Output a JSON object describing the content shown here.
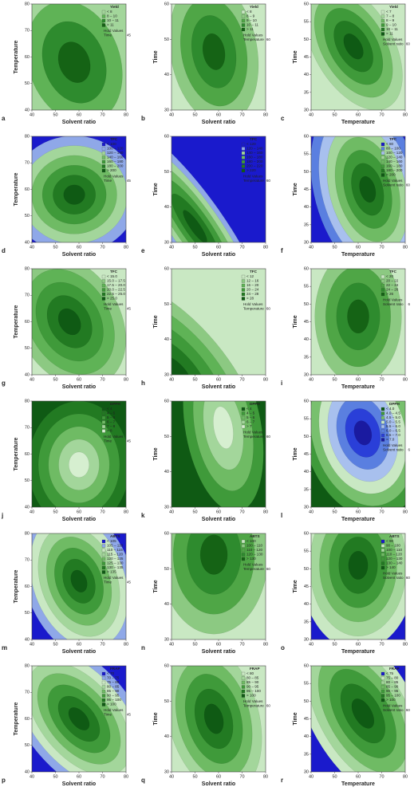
{
  "chart_data": [
    {
      "type": "contour",
      "panel": "a",
      "xlabel": "Solvent ratio",
      "ylabel": "Temperature",
      "xlim": [
        40,
        80
      ],
      "ylim": [
        40,
        80
      ],
      "xticks": [
        40,
        50,
        60,
        70,
        80
      ],
      "yticks": [
        40,
        50,
        60,
        70,
        80
      ],
      "legend_title": "Yield",
      "legend": [
        "< 8",
        "8 – 10",
        "10 – 11",
        "> 11"
      ],
      "levels": [
        8,
        10,
        11
      ],
      "colors": [
        "#a3d69b",
        "#5fb356",
        "#2e8b2e",
        "#156315"
      ],
      "hold_label": "Hold Values",
      "hold_name": "Time",
      "hold_value": 45
    },
    {
      "type": "contour",
      "panel": "b",
      "xlabel": "Solvent ratio",
      "ylabel": "Time",
      "xlim": [
        40,
        80
      ],
      "ylim": [
        30,
        60
      ],
      "xticks": [
        40,
        50,
        60,
        70,
        80
      ],
      "yticks": [
        30,
        40,
        50,
        60
      ],
      "legend_title": "Yield",
      "legend": [
        "< 8",
        "8 – 9",
        "9 – 10",
        "10 – 11",
        "> 11"
      ],
      "levels": [
        8,
        9,
        10,
        11
      ],
      "colors": [
        "#c9e8c3",
        "#8cc982",
        "#4fa646",
        "#2e8b2e",
        "#156315"
      ],
      "hold_label": "Hold Values",
      "hold_name": "Temperature",
      "hold_value": 60
    },
    {
      "type": "contour",
      "panel": "c",
      "xlabel": "Temperature",
      "ylabel": "Time",
      "xlim": [
        40,
        80
      ],
      "ylim": [
        30,
        60
      ],
      "xticks": [
        40,
        50,
        60,
        70,
        80
      ],
      "yticks": [
        30,
        35,
        40,
        45,
        50,
        55,
        60
      ],
      "legend_title": "Yield",
      "legend": [
        "< 7",
        "7 – 8",
        "8 – 9",
        "9 – 10",
        "10 – 11",
        "> 11"
      ],
      "levels": [
        7,
        8,
        9,
        10,
        11
      ],
      "colors": [
        "#c9e8c3",
        "#a3d69b",
        "#6fbb64",
        "#3f9a3a",
        "#227a22",
        "#0f5a14"
      ],
      "hold_label": "Hold Values",
      "hold_name": "Solvent ratio",
      "hold_value": 60
    },
    {
      "type": "contour",
      "panel": "d",
      "xlabel": "Solvent ratio",
      "ylabel": "Temperature",
      "xlim": [
        40,
        80
      ],
      "ylim": [
        40,
        80
      ],
      "xticks": [
        40,
        50,
        60,
        70,
        80
      ],
      "yticks": [
        40,
        50,
        60,
        70,
        80
      ],
      "legend_title": "TPC",
      "legend": [
        "< 100",
        "100 – 120",
        "120 – 140",
        "140 – 160",
        "160 – 180",
        "180 – 200",
        "> 200"
      ],
      "levels": [
        100,
        120,
        140,
        160,
        180,
        200
      ],
      "colors": [
        "#1a1acc",
        "#8fa8e8",
        "#a3d69b",
        "#6fbb64",
        "#3f9a3a",
        "#227a22",
        "#0f5a14"
      ],
      "hold_label": "Hold Values",
      "hold_name": "Time",
      "hold_value": 45
    },
    {
      "type": "contour",
      "panel": "e",
      "xlabel": "Solvent ratio",
      "ylabel": "Time",
      "xlim": [
        40,
        80
      ],
      "ylim": [
        30,
        60
      ],
      "xticks": [
        40,
        50,
        60,
        70,
        80
      ],
      "yticks": [
        30,
        40,
        50,
        60
      ],
      "legend_title": "TPC",
      "legend": [
        "< 120",
        "120 – 140",
        "140 – 160",
        "160 – 180",
        "180 – 200",
        "200 – 220",
        "> 220"
      ],
      "levels": [
        120,
        140,
        160,
        180,
        200,
        220
      ],
      "colors": [
        "#1a1acc",
        "#8fa8e8",
        "#a3d69b",
        "#6fbb64",
        "#3f9a3a",
        "#227a22",
        "#0f5a14"
      ],
      "hold_label": "Hold Values",
      "hold_name": "Temperature",
      "hold_value": 60
    },
    {
      "type": "contour",
      "panel": "f",
      "xlabel": "Temperature",
      "ylabel": "Time",
      "xlim": [
        40,
        80
      ],
      "ylim": [
        30,
        60
      ],
      "xticks": [
        40,
        50,
        60,
        70,
        80
      ],
      "yticks": [
        30,
        35,
        40,
        45,
        50,
        55,
        60
      ],
      "legend_title": "TPC",
      "legend": [
        "< 80",
        "80 – 100",
        "100 – 120",
        "120 – 140",
        "140 – 160",
        "160 – 180",
        "180 – 200",
        "> 200"
      ],
      "levels": [
        80,
        100,
        120,
        140,
        160,
        180,
        200
      ],
      "colors": [
        "#1a1acc",
        "#5a7fe0",
        "#a8c0ee",
        "#a3d69b",
        "#6fbb64",
        "#3f9a3a",
        "#227a22",
        "#0f5a14"
      ],
      "hold_label": "Hold Values",
      "hold_name": "Solvent ratio",
      "hold_value": 60
    },
    {
      "type": "contour",
      "panel": "g",
      "xlabel": "Solvent ratio",
      "ylabel": "Temperature",
      "xlim": [
        40,
        80
      ],
      "ylim": [
        40,
        80
      ],
      "xticks": [
        40,
        50,
        60,
        70,
        80
      ],
      "yticks": [
        40,
        50,
        60,
        70,
        80
      ],
      "legend_title": "TFC",
      "legend": [
        "< 15.0",
        "15.0 – 17.5",
        "17.5 – 20.0",
        "20.0 – 22.5",
        "22.5 – 25.0",
        "> 25.0"
      ],
      "levels": [
        15,
        17.5,
        20,
        22.5,
        25
      ],
      "colors": [
        "#c9e8c3",
        "#8cc982",
        "#5fb356",
        "#3f9a3a",
        "#227a22",
        "#0f5a14"
      ],
      "hold_label": "Hold Values",
      "hold_name": "Time",
      "hold_value": 45
    },
    {
      "type": "contour",
      "panel": "h",
      "xlabel": "Solvent ratio",
      "ylabel": "Time",
      "xlim": [
        40,
        80
      ],
      "ylim": [
        30,
        60
      ],
      "xticks": [
        40,
        50,
        60,
        70,
        80
      ],
      "yticks": [
        30,
        40,
        50,
        60
      ],
      "legend_title": "TFC",
      "legend": [
        "< 12",
        "12 – 16",
        "16 – 20",
        "20 – 24",
        "24 – 28",
        "> 28"
      ],
      "levels": [
        12,
        16,
        20,
        24,
        28
      ],
      "colors": [
        "#c9e8c3",
        "#8cc982",
        "#5fb356",
        "#3f9a3a",
        "#227a22",
        "#0f5a14"
      ],
      "hold_label": "Hold Values",
      "hold_name": "Temperature",
      "hold_value": 60
    },
    {
      "type": "contour",
      "panel": "i",
      "xlabel": "Temperature",
      "ylabel": "Time",
      "xlim": [
        40,
        80
      ],
      "ylim": [
        30,
        60
      ],
      "xticks": [
        40,
        50,
        60,
        70,
        80
      ],
      "yticks": [
        30,
        35,
        40,
        45,
        50,
        55,
        60
      ],
      "legend_title": "TFC",
      "legend": [
        "< 20",
        "20 – 22",
        "22 – 24",
        "24 – 26",
        "> 26"
      ],
      "levels": [
        20,
        22,
        24,
        26
      ],
      "colors": [
        "#c9e8c3",
        "#8cc982",
        "#4fa646",
        "#2e8b2e",
        "#156315"
      ],
      "hold_label": "Hold Values",
      "hold_name": "Solvent ratio",
      "hold_value": 6
    },
    {
      "type": "contour",
      "panel": "j",
      "xlabel": "Solvent ratio",
      "ylabel": "Temperature",
      "xlim": [
        40,
        80
      ],
      "ylim": [
        40,
        80
      ],
      "xticks": [
        40,
        50,
        60,
        70,
        80
      ],
      "yticks": [
        40,
        50,
        60,
        70,
        80
      ],
      "legend_title": "DPPH",
      "legend": [
        "< 4",
        "4 – 5",
        "5 – 6",
        "6 – 7",
        "7 – 8",
        "> 8"
      ],
      "levels": [
        4,
        5,
        6,
        7,
        8
      ],
      "colors": [
        "#0f5a14",
        "#227a22",
        "#3f9a3a",
        "#6fbb64",
        "#a3d69b",
        "#d6efd0"
      ],
      "hold_label": "Hold Values",
      "hold_name": "Time",
      "hold_value": 45
    },
    {
      "type": "contour",
      "panel": "k",
      "xlabel": "Solvent ratio",
      "ylabel": "Time",
      "xlim": [
        40,
        80
      ],
      "ylim": [
        30,
        60
      ],
      "xticks": [
        40,
        50,
        60,
        70,
        80
      ],
      "yticks": [
        30,
        40,
        50,
        60
      ],
      "legend_title": "DPPH",
      "legend": [
        "< 4",
        "4 – 5",
        "5 – 6",
        "6 – 7",
        "> 7"
      ],
      "levels": [
        4,
        5,
        6,
        7
      ],
      "colors": [
        "#0f5a14",
        "#3f9a3a",
        "#6fbb64",
        "#a3d69b",
        "#d6efd0"
      ],
      "hold_label": "Hold Values",
      "hold_name": "Temperature",
      "hold_value": 60
    },
    {
      "type": "contour",
      "panel": "l",
      "xlabel": "Temperature",
      "ylabel": "Time",
      "xlim": [
        40,
        80
      ],
      "ylim": [
        30,
        60
      ],
      "xticks": [
        40,
        50,
        60,
        70,
        80
      ],
      "yticks": [
        30,
        35,
        40,
        45,
        50,
        55,
        60
      ],
      "legend_title": "DPPH",
      "legend": [
        "< 4.0",
        "4.0 – 4.5",
        "4.5 – 5.0",
        "5.0 – 5.5",
        "5.5 – 6.0",
        "6.0 – 6.5",
        "6.5 – 7.0",
        "> 7.0"
      ],
      "levels": [
        4,
        4.5,
        5,
        5.5,
        6,
        6.5,
        7
      ],
      "colors": [
        "#0f5a14",
        "#3f9a3a",
        "#78c06e",
        "#c9e8c3",
        "#a8c0ee",
        "#5a7fe0",
        "#2a3fd8",
        "#1a1aa0"
      ],
      "hold_label": "Hold Values",
      "hold_name": "Solvent ratio",
      "hold_value": 6
    },
    {
      "type": "contour",
      "panel": "m",
      "xlabel": "Solvent ratio",
      "ylabel": "Temperature",
      "xlim": [
        40,
        80
      ],
      "ylim": [
        40,
        80
      ],
      "xticks": [
        40,
        50,
        60,
        70,
        80
      ],
      "yticks": [
        40,
        50,
        60,
        70,
        80
      ],
      "legend_title": "ABTS",
      "legend": [
        "< 105",
        "105 – 110",
        "110 – 115",
        "115 – 120",
        "120 – 125",
        "125 – 130",
        "130 – 135",
        "> 135"
      ],
      "levels": [
        105,
        110,
        115,
        120,
        125,
        130,
        135
      ],
      "colors": [
        "#1a1acc",
        "#8fa8e8",
        "#c9e8c3",
        "#a3d69b",
        "#6fbb64",
        "#3f9a3a",
        "#227a22",
        "#0f5a14"
      ],
      "hold_label": "Hold Values",
      "hold_name": "Time",
      "hold_value": 45
    },
    {
      "type": "contour",
      "panel": "n",
      "xlabel": "Solvent ratio",
      "ylabel": "Time",
      "xlim": [
        40,
        80
      ],
      "ylim": [
        30,
        60
      ],
      "xticks": [
        40,
        50,
        60,
        70,
        80
      ],
      "yticks": [
        30,
        40,
        50,
        60
      ],
      "legend_title": "ABTS",
      "legend": [
        "< 100",
        "100 – 110",
        "110 – 120",
        "120 – 130",
        "> 130"
      ],
      "levels": [
        100,
        110,
        120,
        130
      ],
      "colors": [
        "#c9e8c3",
        "#8cc982",
        "#4fa646",
        "#2e8b2e",
        "#156315"
      ],
      "hold_label": "Hold Values",
      "hold_name": "Temperature",
      "hold_value": 60
    },
    {
      "type": "contour",
      "panel": "o",
      "xlabel": "Temperature",
      "ylabel": "Time",
      "xlim": [
        40,
        80
      ],
      "ylim": [
        30,
        60
      ],
      "xticks": [
        40,
        50,
        60,
        70,
        80
      ],
      "yticks": [
        30,
        35,
        40,
        45,
        50,
        55,
        60
      ],
      "legend_title": "ABTS",
      "legend": [
        "< 90",
        "90 – 100",
        "100 – 110",
        "110 – 120",
        "120 – 130",
        "130 – 140",
        "> 140"
      ],
      "levels": [
        90,
        100,
        110,
        120,
        130,
        140
      ],
      "colors": [
        "#1a1acc",
        "#c9e8c3",
        "#a3d69b",
        "#6fbb64",
        "#3f9a3a",
        "#227a22",
        "#0f5a14"
      ],
      "hold_label": "Hold Values",
      "hold_name": "Solvent ratio",
      "hold_value": 60
    },
    {
      "type": "contour",
      "panel": "p",
      "xlabel": "Solvent ratio",
      "ylabel": "Temperature",
      "xlim": [
        40,
        80
      ],
      "ylim": [
        40,
        80
      ],
      "xticks": [
        40,
        50,
        60,
        70,
        80
      ],
      "yticks": [
        40,
        50,
        60,
        70,
        80
      ],
      "legend_title": "FRAP",
      "legend": [
        "< 70",
        "70 – 75",
        "75 – 80",
        "80 – 85",
        "85 – 90",
        "90 – 95",
        "95 – 100",
        "> 100"
      ],
      "levels": [
        70,
        75,
        80,
        85,
        90,
        95,
        100
      ],
      "colors": [
        "#1a1acc",
        "#8fa8e8",
        "#c9e8c3",
        "#a3d69b",
        "#6fbb64",
        "#3f9a3a",
        "#227a22",
        "#0f5a14"
      ],
      "hold_label": "Hold Values",
      "hold_name": "Time",
      "hold_value": 45
    },
    {
      "type": "contour",
      "panel": "q",
      "xlabel": "Solvent ratio",
      "ylabel": "Time",
      "xlim": [
        40,
        80
      ],
      "ylim": [
        30,
        60
      ],
      "xticks": [
        40,
        50,
        60,
        70,
        80
      ],
      "yticks": [
        30,
        40,
        50,
        60
      ],
      "legend_title": "FRAP",
      "legend": [
        "< 80",
        "80 – 85",
        "85 – 90",
        "90 – 95",
        "95 – 100",
        "> 100"
      ],
      "levels": [
        80,
        85,
        90,
        95,
        100
      ],
      "colors": [
        "#c9e8c3",
        "#a3d69b",
        "#6fbb64",
        "#3f9a3a",
        "#227a22",
        "#0f5a14"
      ],
      "hold_label": "Hold Values",
      "hold_name": "Temperature",
      "hold_value": 60
    },
    {
      "type": "contour",
      "panel": "r",
      "xlabel": "Temperature",
      "ylabel": "Time",
      "xlim": [
        40,
        80
      ],
      "ylim": [
        30,
        60
      ],
      "xticks": [
        40,
        50,
        60,
        70,
        80
      ],
      "yticks": [
        30,
        35,
        40,
        45,
        50,
        55,
        60
      ],
      "legend_title": "FRAP",
      "legend": [
        "< 75",
        "75 – 80",
        "80 – 85",
        "85 – 90",
        "90 – 95",
        "95 – 100",
        "> 100"
      ],
      "levels": [
        75,
        80,
        85,
        90,
        95,
        100
      ],
      "colors": [
        "#1a1acc",
        "#c9e8c3",
        "#a3d69b",
        "#6fbb64",
        "#3f9a3a",
        "#227a22",
        "#0f5a14"
      ],
      "hold_label": "Hold Values",
      "hold_name": "Solvent ratio",
      "hold_value": 60
    }
  ]
}
